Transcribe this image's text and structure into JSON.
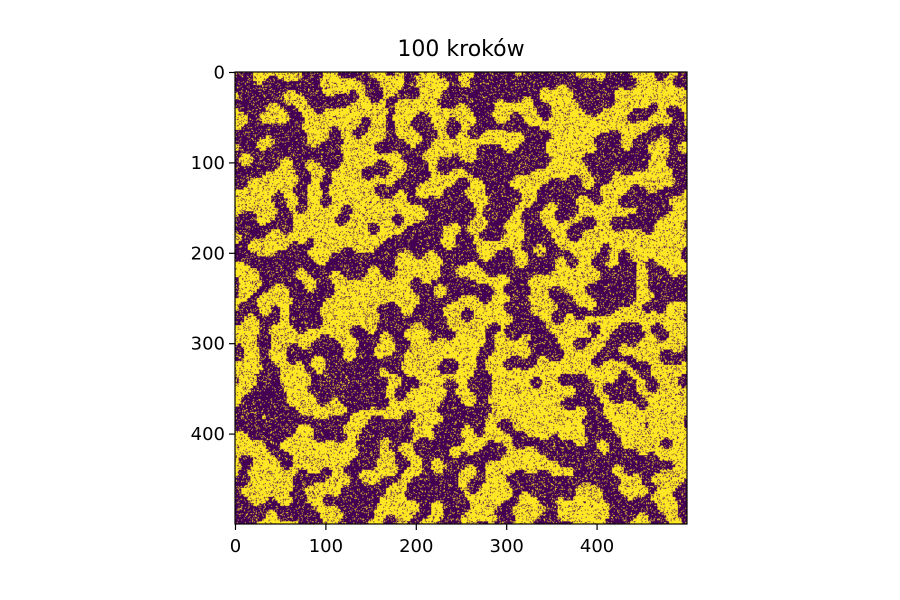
{
  "chart_data": {
    "type": "heatmap",
    "title": "100 kroków",
    "xlabel": "",
    "ylabel": "",
    "xlim": [
      0,
      500
    ],
    "ylim": [
      500,
      0
    ],
    "grid_size": 500,
    "x_ticks": [
      0,
      100,
      200,
      300,
      400
    ],
    "y_ticks": [
      0,
      100,
      200,
      300,
      400
    ],
    "x_tick_labels": [
      "0",
      "100",
      "200",
      "300",
      "400"
    ],
    "y_tick_labels": [
      "0",
      "100",
      "200",
      "300",
      "400"
    ],
    "colormap": "viridis",
    "states": [
      -1,
      1
    ],
    "state_colors": {
      "-1": "#440154",
      "1": "#fde725"
    },
    "description_steps": 100
  },
  "colors": {
    "low": "#440154",
    "high": "#fde725",
    "axis": "#000000",
    "background": "#ffffff"
  }
}
